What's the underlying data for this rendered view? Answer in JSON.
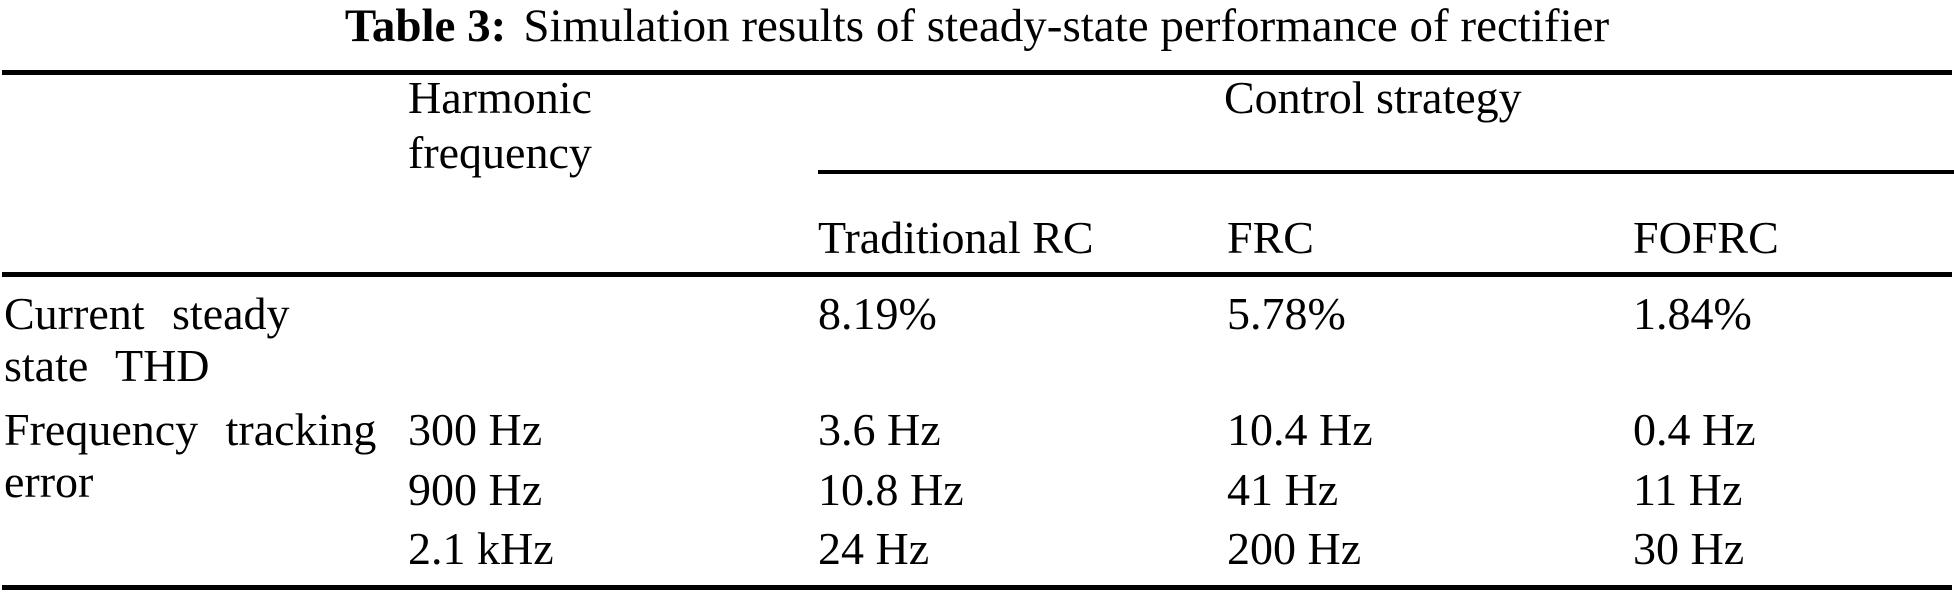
{
  "caption": {
    "label": "Table 3:",
    "text": "Simulation results of steady-state performance of rectifier"
  },
  "table": {
    "header": {
      "harmonic": {
        "line1": "Harmonic",
        "line2": "frequency"
      },
      "group": "Control strategy",
      "strategies": [
        "Traditional RC",
        "FRC",
        "FOFRC"
      ]
    },
    "rows": [
      {
        "label": {
          "line1": "Current steady",
          "line2": "state THD"
        },
        "harmonic": "",
        "cells": [
          "8.19%",
          "5.78%",
          "1.84%"
        ]
      },
      {
        "label": {
          "line1": "Frequency tracking",
          "line2": "error"
        },
        "harmonic": "300 Hz",
        "cells": [
          "3.6 Hz",
          "10.4 Hz",
          "0.4 Hz"
        ]
      },
      {
        "harmonic": "900 Hz",
        "cells": [
          "10.8 Hz",
          "41 Hz",
          "11 Hz"
        ]
      },
      {
        "harmonic": "2.1 kHz",
        "cells": [
          "24 Hz",
          "200 Hz",
          "30 Hz"
        ]
      }
    ]
  },
  "colors": {
    "text": "#000000",
    "background": "#ffffff",
    "rule": "#000000"
  }
}
